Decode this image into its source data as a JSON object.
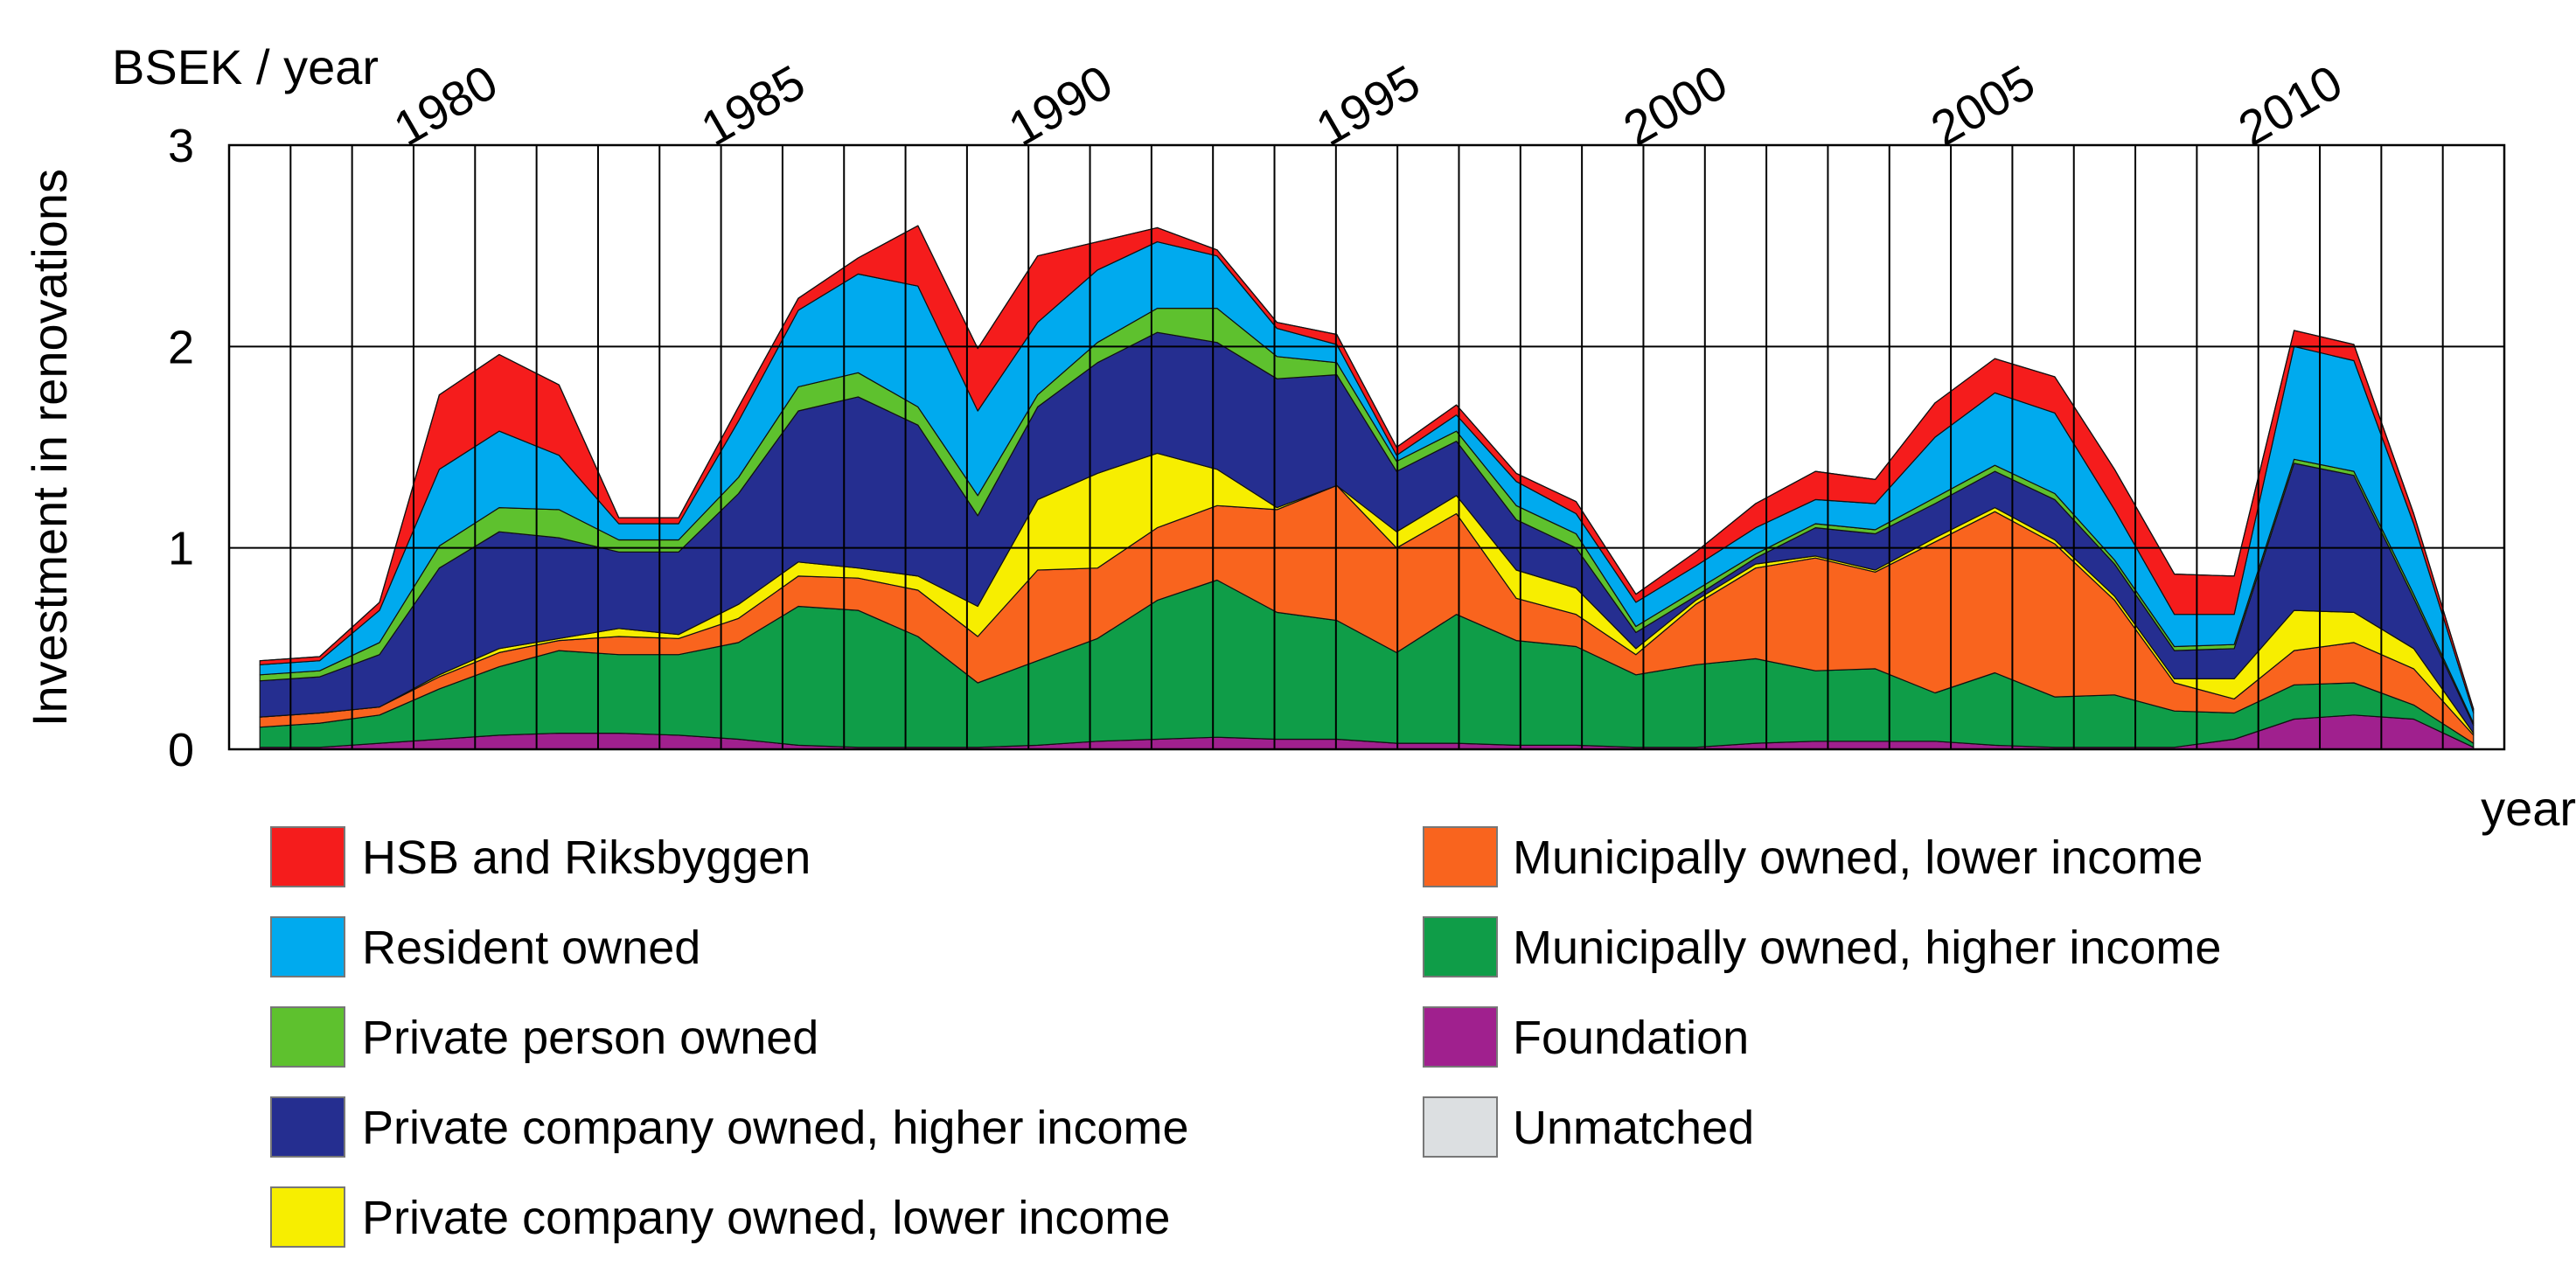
{
  "chart_data": {
    "type": "area",
    "stacked": true,
    "unit_label": "BSEK / year",
    "ylabel": "Investment in renovations",
    "xlabel": "year",
    "ylim": [
      0,
      3
    ],
    "y_ticks": [
      "0",
      "1",
      "2",
      "3"
    ],
    "x_range": [
      1977,
      2014
    ],
    "x_ticks": [
      "1980",
      "1985",
      "1990",
      "1995",
      "2000",
      "2005",
      "2010"
    ],
    "x": [
      1977,
      1978,
      1979,
      1980,
      1981,
      1982,
      1983,
      1984,
      1985,
      1986,
      1987,
      1988,
      1989,
      1990,
      1991,
      1992,
      1993,
      1994,
      1995,
      1996,
      1997,
      1998,
      1999,
      2000,
      2001,
      2002,
      2003,
      2004,
      2005,
      2006,
      2007,
      2008,
      2009,
      2010,
      2011,
      2012,
      2013,
      2014
    ],
    "series": [
      {
        "name": "Foundation",
        "color": "#a0208e",
        "values": [
          0.01,
          0.01,
          0.03,
          0.05,
          0.07,
          0.08,
          0.08,
          0.07,
          0.05,
          0.02,
          0.01,
          0.01,
          0.01,
          0.02,
          0.04,
          0.05,
          0.06,
          0.05,
          0.05,
          0.03,
          0.03,
          0.02,
          0.02,
          0.01,
          0.01,
          0.03,
          0.04,
          0.04,
          0.04,
          0.02,
          0.01,
          0.01,
          0.01,
          0.05,
          0.15,
          0.17,
          0.15,
          0.01
        ]
      },
      {
        "name": "Municipally owned, higher income",
        "color": "#0f9d48",
        "values": [
          0.1,
          0.12,
          0.14,
          0.25,
          0.34,
          0.41,
          0.39,
          0.4,
          0.48,
          0.69,
          0.68,
          0.55,
          0.32,
          0.42,
          0.51,
          0.69,
          0.78,
          0.63,
          0.59,
          0.45,
          0.64,
          0.52,
          0.49,
          0.36,
          0.41,
          0.42,
          0.35,
          0.36,
          0.24,
          0.36,
          0.25,
          0.26,
          0.18,
          0.13,
          0.17,
          0.16,
          0.07,
          0.02
        ]
      },
      {
        "name": "Municipally owned, lower income",
        "color": "#f9641e",
        "values": [
          0.05,
          0.05,
          0.04,
          0.06,
          0.07,
          0.05,
          0.09,
          0.08,
          0.12,
          0.15,
          0.16,
          0.23,
          0.23,
          0.45,
          0.35,
          0.36,
          0.37,
          0.51,
          0.67,
          0.52,
          0.5,
          0.21,
          0.16,
          0.1,
          0.3,
          0.45,
          0.56,
          0.48,
          0.75,
          0.8,
          0.76,
          0.47,
          0.14,
          0.07,
          0.17,
          0.2,
          0.18,
          0.04
        ]
      },
      {
        "name": "Private company owned, lower income",
        "color": "#f7ee00",
        "values": [
          0.0,
          0.0,
          0.0,
          0.01,
          0.02,
          0.01,
          0.04,
          0.02,
          0.07,
          0.07,
          0.05,
          0.07,
          0.15,
          0.35,
          0.47,
          0.37,
          0.18,
          0.01,
          0.0,
          0.08,
          0.09,
          0.14,
          0.13,
          0.03,
          0.02,
          0.02,
          0.01,
          0.01,
          0.02,
          0.02,
          0.02,
          0.02,
          0.02,
          0.1,
          0.2,
          0.15,
          0.1,
          0.01
        ]
      },
      {
        "name": "Private company owned, higher income",
        "color": "#252e90",
        "values": [
          0.18,
          0.18,
          0.26,
          0.53,
          0.58,
          0.5,
          0.38,
          0.41,
          0.55,
          0.75,
          0.85,
          0.75,
          0.45,
          0.46,
          0.55,
          0.6,
          0.63,
          0.64,
          0.55,
          0.3,
          0.27,
          0.25,
          0.2,
          0.08,
          0.02,
          0.03,
          0.14,
          0.18,
          0.17,
          0.18,
          0.2,
          0.16,
          0.14,
          0.15,
          0.73,
          0.68,
          0.25,
          0.04
        ]
      },
      {
        "name": "Private person owned",
        "color": "#5ec12e",
        "values": [
          0.03,
          0.03,
          0.06,
          0.11,
          0.12,
          0.14,
          0.06,
          0.06,
          0.08,
          0.12,
          0.12,
          0.09,
          0.1,
          0.06,
          0.1,
          0.12,
          0.17,
          0.11,
          0.06,
          0.05,
          0.05,
          0.07,
          0.07,
          0.03,
          0.03,
          0.02,
          0.02,
          0.02,
          0.03,
          0.03,
          0.03,
          0.02,
          0.02,
          0.02,
          0.02,
          0.02,
          0.02,
          0.01
        ]
      },
      {
        "name": "Resident owned",
        "color": "#00aaee",
        "values": [
          0.05,
          0.05,
          0.16,
          0.38,
          0.38,
          0.27,
          0.08,
          0.08,
          0.28,
          0.38,
          0.49,
          0.6,
          0.42,
          0.36,
          0.36,
          0.33,
          0.26,
          0.14,
          0.09,
          0.03,
          0.08,
          0.12,
          0.1,
          0.12,
          0.12,
          0.13,
          0.12,
          0.13,
          0.3,
          0.36,
          0.4,
          0.25,
          0.16,
          0.15,
          0.56,
          0.55,
          0.35,
          0.05
        ]
      },
      {
        "name": "HSB and Riksbyggen",
        "color": "#f51c1c",
        "values": [
          0.02,
          0.02,
          0.04,
          0.37,
          0.38,
          0.35,
          0.03,
          0.03,
          0.07,
          0.06,
          0.08,
          0.3,
          0.31,
          0.33,
          0.14,
          0.07,
          0.03,
          0.03,
          0.05,
          0.04,
          0.05,
          0.04,
          0.06,
          0.04,
          0.07,
          0.12,
          0.14,
          0.12,
          0.17,
          0.17,
          0.18,
          0.2,
          0.2,
          0.19,
          0.08,
          0.08,
          0.05,
          0.02
        ]
      },
      {
        "name": "Unmatched",
        "color": "#dcdfe1",
        "values": [
          0,
          0,
          0,
          0,
          0,
          0,
          0,
          0,
          0,
          0,
          0,
          0,
          0,
          0,
          0,
          0,
          0,
          0,
          0,
          0,
          0,
          0,
          0,
          0,
          0,
          0,
          0,
          0,
          0,
          0,
          0,
          0,
          0,
          0,
          0,
          0,
          0,
          0
        ]
      }
    ],
    "legend": {
      "placement": "bottom",
      "left_column": [
        "HSB and Riksbyggen",
        "Resident owned",
        "Private person owned",
        "Private company owned, higher income",
        "Private company owned, lower income"
      ],
      "right_column": [
        "Municipally owned, lower income",
        "Municipally owned, higher income",
        "Foundation",
        "Unmatched"
      ]
    }
  }
}
